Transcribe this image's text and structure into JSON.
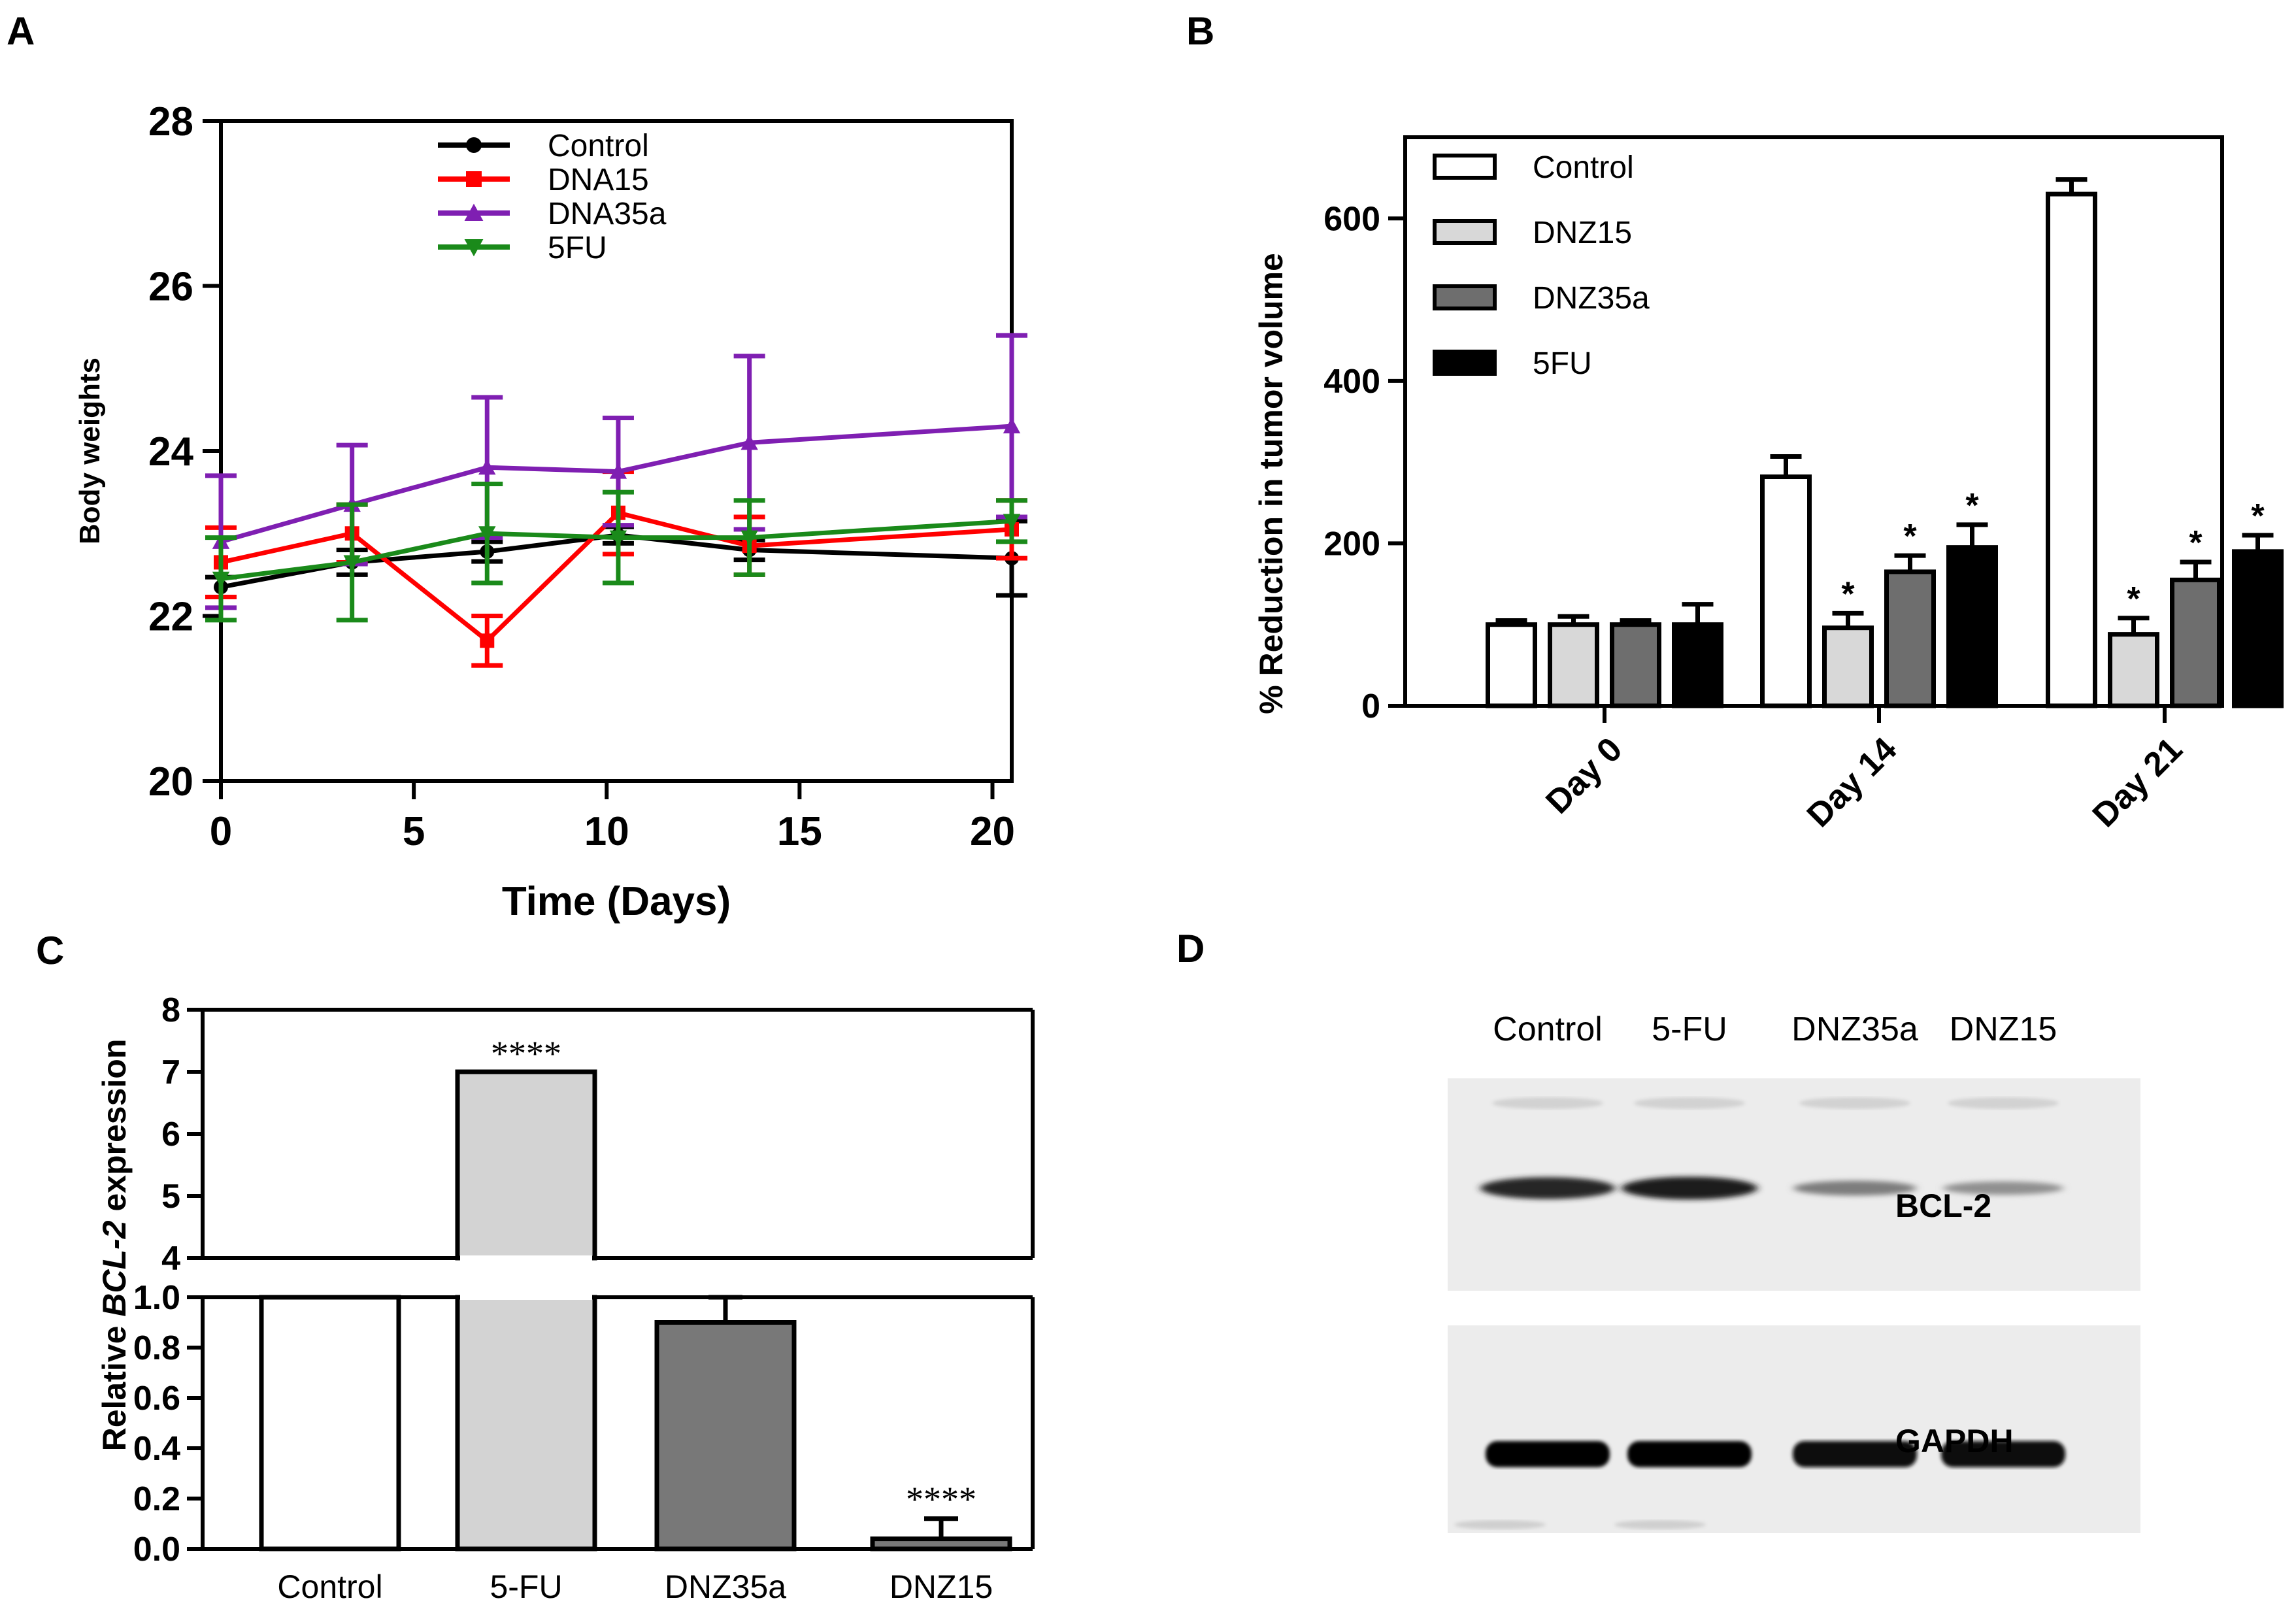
{
  "panels": {
    "a": {
      "label": "A"
    },
    "b": {
      "label": "B"
    },
    "c": {
      "label": "C"
    },
    "d": {
      "label": "D"
    }
  },
  "chart_data": [
    {
      "id": "A",
      "type": "line",
      "title": "",
      "xlabel": "Time (Days)",
      "ylabel": "Body  weights",
      "xlim": [
        0,
        20.5
      ],
      "ylim": [
        20,
        28
      ],
      "xticks": [
        0,
        5,
        10,
        15,
        20
      ],
      "yticks": [
        20,
        22,
        24,
        26,
        28
      ],
      "x": [
        0,
        3.4,
        6.9,
        10.3,
        13.7,
        20.5
      ],
      "series": [
        {
          "name": "Control",
          "color": "#000000",
          "marker": "circle",
          "values": [
            22.35,
            22.65,
            22.78,
            22.98,
            22.8,
            22.7
          ],
          "errors": [
            0.12,
            0.15,
            0.12,
            0.1,
            0.12,
            0.45
          ]
        },
        {
          "name": "DNA15",
          "color": "#ff0000",
          "marker": "square",
          "values": [
            22.65,
            23.0,
            21.7,
            23.25,
            22.85,
            23.05
          ],
          "errors": [
            0.42,
            0.35,
            0.3,
            0.5,
            0.35,
            0.35
          ]
        },
        {
          "name": "DNA35a",
          "color": "#7f1fb2",
          "marker": "triangle-up",
          "values": [
            22.9,
            23.35,
            23.8,
            23.75,
            24.1,
            24.3
          ],
          "errors": [
            0.8,
            0.72,
            0.85,
            0.65,
            1.05,
            1.1
          ]
        },
        {
          "name": "5FU",
          "color": "#1a8a1a",
          "marker": "triangle-down",
          "values": [
            22.45,
            22.65,
            23.0,
            22.95,
            22.95,
            23.15
          ],
          "errors": [
            0.5,
            0.7,
            0.6,
            0.55,
            0.45,
            0.25
          ]
        }
      ]
    },
    {
      "id": "B",
      "type": "bar",
      "title": "",
      "xlabel": "",
      "ylabel": "% Reduction in tumor volume",
      "ylim": [
        0,
        700
      ],
      "yticks": [
        0,
        200,
        400,
        600
      ],
      "categories": [
        "Day 0",
        "Day 14",
        "Day 21"
      ],
      "series": [
        {
          "name": "Control",
          "fill": "#ffffff",
          "values": [
            100,
            282,
            630
          ],
          "errors": [
            5,
            25,
            18
          ],
          "sig": [
            "",
            "",
            ""
          ]
        },
        {
          "name": "DNZ15",
          "fill": "#d8d8d8",
          "values": [
            100,
            96,
            88
          ],
          "errors": [
            10,
            18,
            20
          ],
          "sig": [
            "",
            "*",
            "*"
          ]
        },
        {
          "name": "DNZ35a",
          "fill": "#6e6e6e",
          "values": [
            100,
            165,
            155
          ],
          "errors": [
            5,
            20,
            22
          ],
          "sig": [
            "",
            "*",
            "*"
          ]
        },
        {
          "name": "5FU",
          "fill": "#000000",
          "values": [
            100,
            195,
            190
          ],
          "errors": [
            25,
            28,
            20
          ],
          "sig": [
            "",
            "*",
            "*"
          ]
        }
      ]
    },
    {
      "id": "C",
      "type": "bar",
      "title": "",
      "xlabel": "",
      "ylabel_prefix": "Relative ",
      "ylabel_gene": "BCL-2",
      "ylabel_suffix": " expression",
      "axis_break": {
        "lower": [
          0,
          1.0
        ],
        "upper": [
          4,
          8
        ]
      },
      "yticks_lower": [
        "0.0",
        "0.2",
        "0.4",
        "0.6",
        "0.8",
        "1.0"
      ],
      "yticks_upper": [
        "4",
        "5",
        "6",
        "7",
        "8"
      ],
      "categories": [
        "Control",
        "5-FU",
        "DNZ35a",
        "DNZ15"
      ],
      "fills": [
        "#ffffff",
        "#d3d3d3",
        "#787878",
        "#787878"
      ],
      "values": [
        1.0,
        7.0,
        0.9,
        0.04
      ],
      "errors": [
        0,
        0,
        0.1,
        0.08
      ],
      "sig": [
        "",
        "****",
        "",
        "****"
      ]
    }
  ],
  "western_blot": {
    "lanes": [
      "Control",
      "5-FU",
      "DNZ35a",
      "DNZ15"
    ],
    "proteins": [
      "BCL-2",
      "GAPDH"
    ],
    "band_intensity": {
      "BCL-2": [
        0.9,
        0.95,
        0.45,
        0.35
      ],
      "GAPDH": [
        1.0,
        1.0,
        0.95,
        0.95
      ]
    }
  }
}
